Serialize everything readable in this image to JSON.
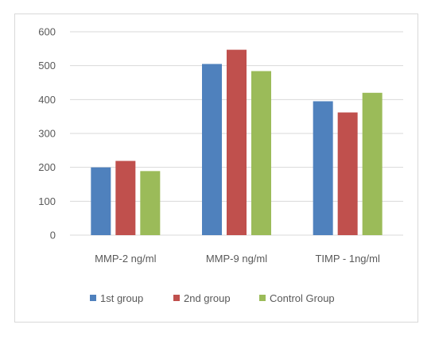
{
  "chart_data": {
    "type": "bar",
    "categories": [
      "MMP-2 ng/ml",
      "MMP-9 ng/ml",
      "TIMP - 1ng/ml"
    ],
    "series": [
      {
        "name": "1st group",
        "color": "#4f81bd",
        "values": [
          200,
          505,
          395
        ]
      },
      {
        "name": "2nd group",
        "color": "#c0504d",
        "values": [
          219,
          547,
          362
        ]
      },
      {
        "name": "Control Group",
        "color": "#9bbb59",
        "values": [
          189,
          484,
          420
        ]
      }
    ],
    "yticks": [
      "0",
      "100",
      "200",
      "300",
      "400",
      "500",
      "600"
    ],
    "ylim": [
      0,
      600
    ],
    "grid": true,
    "legend": "bottom"
  }
}
